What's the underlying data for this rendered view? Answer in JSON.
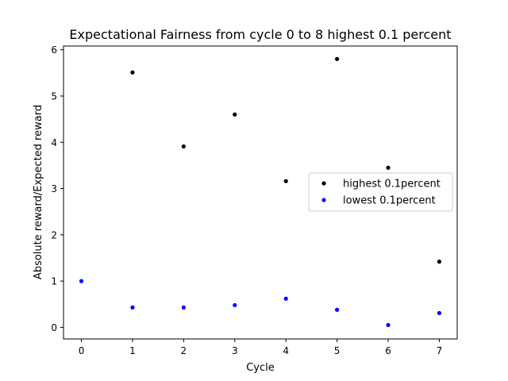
{
  "chart_data": {
    "type": "scatter",
    "title": "Expectational Fairness from cycle 0 to 8 highest 0.1 percent",
    "xlabel": "Cycle",
    "ylabel": "Absolute reward/Expected reward",
    "xlim": [
      -0.35,
      7.35
    ],
    "ylim": [
      -0.25,
      6.08
    ],
    "xticks": [
      0,
      1,
      2,
      3,
      4,
      5,
      6,
      7
    ],
    "yticks": [
      0,
      1,
      2,
      3,
      4,
      5,
      6
    ],
    "grid": false,
    "legend_position": "center-right",
    "series": [
      {
        "name": "highest 0.1percent",
        "color": "#000000",
        "x": [
          1,
          2,
          3,
          4,
          5,
          6,
          7
        ],
        "y": [
          5.51,
          3.91,
          4.6,
          3.16,
          5.8,
          3.45,
          1.42
        ]
      },
      {
        "name": "lowest 0.1percent",
        "color": "#0000ff",
        "x": [
          0,
          1,
          2,
          3,
          4,
          5,
          6,
          7
        ],
        "y": [
          1.0,
          0.43,
          0.43,
          0.48,
          0.62,
          0.38,
          0.05,
          0.31
        ]
      }
    ]
  }
}
